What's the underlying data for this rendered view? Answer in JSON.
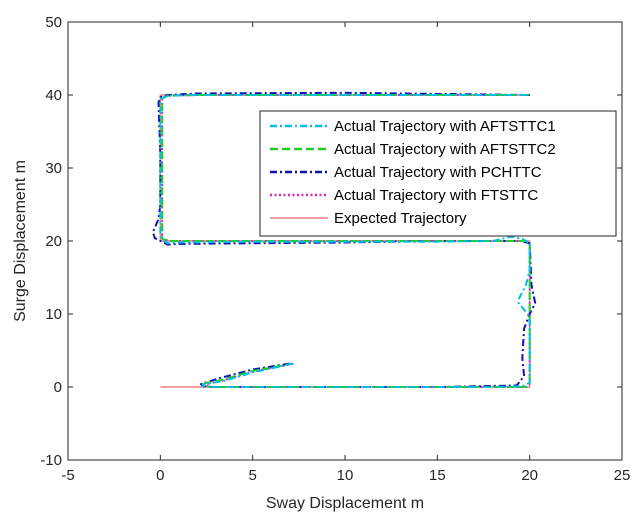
{
  "chart_data": {
    "type": "line",
    "title": "",
    "xlabel": "Sway Displacement m",
    "ylabel": "Surge Displacement m",
    "xlim": [
      -5,
      25
    ],
    "ylim": [
      -10,
      50
    ],
    "xticks": [
      "-5",
      "0",
      "5",
      "10",
      "15",
      "20",
      "25"
    ],
    "yticks": [
      "-10",
      "0",
      "10",
      "20",
      "30",
      "40",
      "50"
    ],
    "grid": false,
    "legend_position": "top-right",
    "series": [
      {
        "name": "Actual Trajectory with AFTSTTC1",
        "color": "#00BFE8",
        "dash": "dash-dot",
        "x": [
          7.2,
          5.0,
          3.4,
          2.3,
          2.3,
          3.0,
          6.0,
          10.0,
          14.0,
          18.0,
          19.6,
          20.0,
          20.0,
          20.0,
          20.0,
          19.9,
          19.4,
          19.4,
          19.8,
          20.0,
          20.0,
          19.6,
          19.0,
          18.0,
          15.0,
          10.0,
          5.0,
          1.0,
          0.4,
          0.1,
          0.0,
          0.0,
          0.0,
          0.0,
          0.4,
          2.0,
          10.0,
          20.0
        ],
        "y": [
          3.2,
          2.0,
          0.8,
          0.4,
          0.1,
          0.0,
          0.0,
          0.0,
          0.0,
          0.0,
          0.1,
          0.6,
          3.0,
          7.0,
          9.0,
          10.0,
          11.5,
          12.0,
          14.0,
          16.0,
          19.7,
          20.3,
          20.6,
          20.0,
          19.9,
          19.9,
          19.9,
          19.8,
          19.7,
          20.2,
          21.0,
          25.0,
          32.0,
          39.5,
          39.9,
          40.0,
          40.0,
          40.0
        ]
      },
      {
        "name": "Actual Trajectory with AFTSTTC2",
        "color": "#22CC22",
        "dash": "dash",
        "x": [
          7.2,
          5.0,
          3.4,
          2.4,
          2.4,
          3.0,
          6.0,
          10.0,
          15.0,
          19.8,
          20.0,
          20.0,
          20.0,
          20.0,
          19.8,
          15.0,
          10.0,
          5.0,
          0.5,
          0.1,
          0.1,
          0.1,
          0.4,
          2.0,
          10.0,
          20.0
        ],
        "y": [
          3.2,
          2.2,
          1.0,
          0.5,
          0.1,
          0.0,
          0.0,
          0.0,
          0.0,
          0.0,
          0.5,
          5.0,
          12.0,
          19.5,
          20.0,
          20.0,
          20.0,
          20.0,
          20.0,
          20.3,
          25.0,
          39.5,
          39.9,
          40.0,
          40.0,
          40.0
        ]
      },
      {
        "name": "Actual Trajectory with PCHTTC",
        "color": "#0F12B4",
        "dash": "dash-dot",
        "x": [
          7.0,
          5.0,
          3.2,
          2.2,
          2.3,
          2.8,
          6.0,
          10.0,
          15.0,
          19.3,
          19.7,
          19.6,
          19.7,
          20.0,
          20.3,
          20.1,
          20.0,
          19.5,
          15.0,
          10.0,
          5.0,
          1.0,
          0.4,
          -0.3,
          -0.4,
          -0.1,
          0.0,
          0.0,
          -0.1,
          0.0,
          0.4,
          2.0,
          10.0,
          20.0
        ],
        "y": [
          3.2,
          2.4,
          1.2,
          0.4,
          0.1,
          0.0,
          0.0,
          0.0,
          0.0,
          0.2,
          1.5,
          4.0,
          8.0,
          10.0,
          11.5,
          14.0,
          19.7,
          20.0,
          20.0,
          19.8,
          19.7,
          19.6,
          19.5,
          20.4,
          21.2,
          23.0,
          25.0,
          32.0,
          39.0,
          39.7,
          40.0,
          40.2,
          40.3,
          40.0
        ]
      },
      {
        "name": "Actual Trajectory with FTSTTC",
        "color": "#E020C8",
        "dash": "dot",
        "x": [
          7.2,
          5.0,
          3.4,
          2.5,
          2.6,
          3.2,
          6.0,
          10.0,
          15.0,
          19.8,
          20.0,
          20.0,
          20.0,
          20.0,
          19.8,
          15.0,
          10.0,
          5.0,
          0.5,
          0.1,
          0.1,
          0.1,
          0.4,
          2.0,
          10.0,
          20.0
        ],
        "y": [
          3.2,
          2.1,
          0.9,
          0.4,
          0.0,
          0.0,
          0.0,
          0.0,
          0.0,
          0.0,
          0.5,
          5.0,
          12.0,
          19.5,
          20.0,
          20.0,
          20.0,
          20.0,
          20.0,
          20.3,
          25.0,
          39.5,
          39.9,
          40.0,
          40.0,
          40.0
        ]
      },
      {
        "name": "Expected Trajectory",
        "color": "#F08080",
        "dash": "solid",
        "x": [
          0,
          20,
          20,
          0,
          0,
          20
        ],
        "y": [
          0,
          0,
          20,
          20,
          40,
          40
        ]
      }
    ]
  }
}
